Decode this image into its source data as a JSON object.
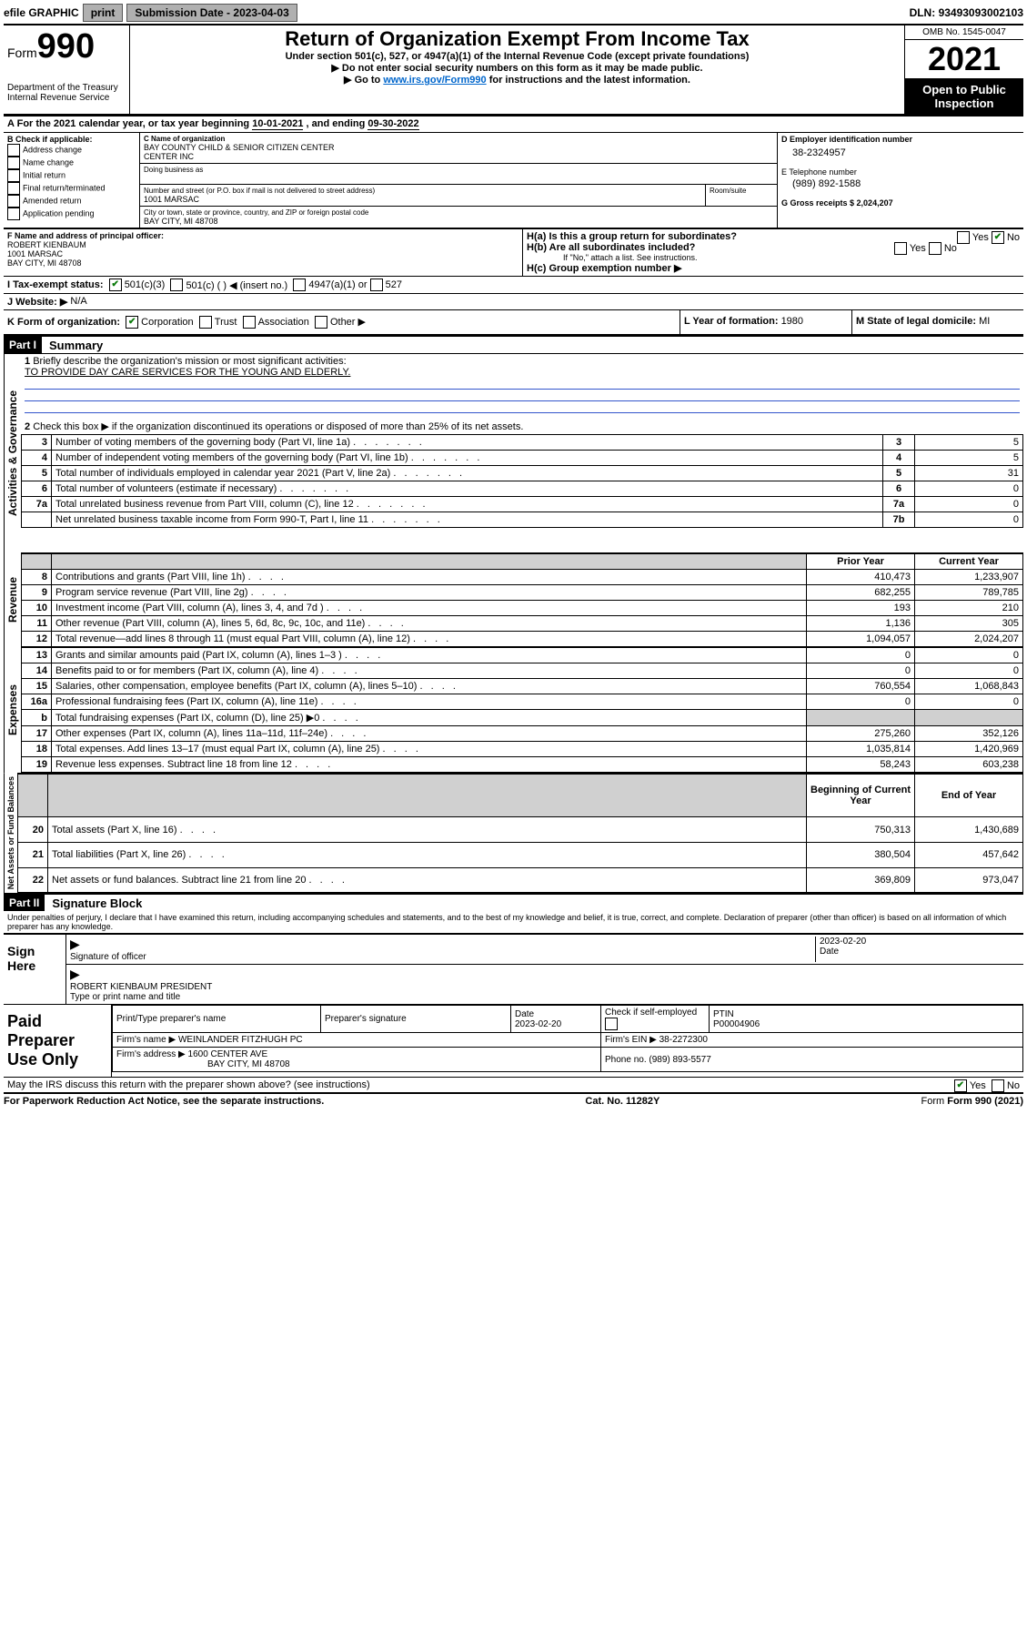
{
  "topbar": {
    "efile": "efile GRAPHIC",
    "print": "print",
    "submission_label": "Submission Date - ",
    "submission_date": "2023-04-03",
    "dln_label": "DLN: ",
    "dln": "93493093002103"
  },
  "header": {
    "form_prefix": "Form",
    "form_number": "990",
    "dept": "Department of the Treasury\nInternal Revenue Service",
    "title": "Return of Organization Exempt From Income Tax",
    "sub1": "Under section 501(c), 527, or 4947(a)(1) of the Internal Revenue Code (except private foundations)",
    "sub2": "▶ Do not enter social security numbers on this form as it may be made public.",
    "sub3_pre": "▶ Go to ",
    "sub3_link": "www.irs.gov/Form990",
    "sub3_post": " for instructions and the latest information.",
    "omb": "OMB No. 1545-0047",
    "year": "2021",
    "open": "Open to Public Inspection"
  },
  "period": {
    "text_a": "For the 2021 calendar year, or tax year beginning ",
    "begin": "10-01-2021",
    "mid": " , and ending ",
    "end": "09-30-2022"
  },
  "boxB": {
    "label": "B Check if applicable:",
    "items": [
      "Address change",
      "Name change",
      "Initial return",
      "Final return/terminated",
      "Amended return",
      "Application pending"
    ]
  },
  "boxC": {
    "name_label": "C Name of organization",
    "name": "BAY COUNTY CHILD & SENIOR CITIZEN CENTER\nCENTER INC",
    "dba_label": "Doing business as",
    "street_label": "Number and street (or P.O. box if mail is not delivered to street address)",
    "room_label": "Room/suite",
    "street": "1001 MARSAC",
    "city_label": "City or town, state or province, country, and ZIP or foreign postal code",
    "city": "BAY CITY, MI  48708"
  },
  "boxD": {
    "label": "D Employer identification number",
    "ein": "38-2324957"
  },
  "boxE": {
    "label": "E Telephone number",
    "phone": "(989) 892-1588"
  },
  "boxG": {
    "label": "G Gross receipts $ ",
    "amount": "2,024,207"
  },
  "boxF": {
    "label": "F Name and address of principal officer:",
    "name": "ROBERT KIENBAUM",
    "street": "1001 MARSAC",
    "city": "BAY CITY, MI  48708"
  },
  "boxH": {
    "a_label": "H(a)  Is this a group return for subordinates?",
    "a_yes": "Yes",
    "a_no": "No",
    "b_label": "H(b)  Are all subordinates included?",
    "note": "If \"No,\" attach a list. See instructions.",
    "c_label": "H(c)  Group exemption number ▶"
  },
  "boxI": {
    "label": "I   Tax-exempt status:",
    "opts": [
      "501(c)(3)",
      "501(c) (  ) ◀ (insert no.)",
      "4947(a)(1) or",
      "527"
    ]
  },
  "boxJ": {
    "label": "J   Website: ▶",
    "value": "N/A"
  },
  "boxK": {
    "label": "K Form of organization:",
    "opts": [
      "Corporation",
      "Trust",
      "Association",
      "Other ▶"
    ]
  },
  "boxL": {
    "label": "L Year of formation: ",
    "value": "1980"
  },
  "boxM": {
    "label": "M State of legal domicile: ",
    "value": "MI"
  },
  "part1": {
    "header": "Part I",
    "title": "Summary"
  },
  "summary": {
    "q1": "Briefly describe the organization's mission or most significant activities:",
    "q1_ans": "TO PROVIDE DAY CARE SERVICES FOR THE YOUNG AND ELDERLY.",
    "q2": "Check this box ▶       if the organization discontinued its operations or disposed of more than 25% of its net assets.",
    "lines_gov": [
      {
        "n": "3",
        "t": "Number of voting members of the governing body (Part VI, line 1a)",
        "box": "3",
        "v": "5"
      },
      {
        "n": "4",
        "t": "Number of independent voting members of the governing body (Part VI, line 1b)",
        "box": "4",
        "v": "5"
      },
      {
        "n": "5",
        "t": "Total number of individuals employed in calendar year 2021 (Part V, line 2a)",
        "box": "5",
        "v": "31"
      },
      {
        "n": "6",
        "t": "Total number of volunteers (estimate if necessary)",
        "box": "6",
        "v": "0"
      },
      {
        "n": "7a",
        "t": "Total unrelated business revenue from Part VIII, column (C), line 12",
        "box": "7a",
        "v": "0"
      },
      {
        "n": "",
        "t": "Net unrelated business taxable income from Form 990-T, Part I, line 11",
        "box": "7b",
        "v": "0"
      }
    ],
    "col_prior": "Prior Year",
    "col_current": "Current Year",
    "revenue": [
      {
        "n": "8",
        "t": "Contributions and grants (Part VIII, line 1h)",
        "p": "410,473",
        "c": "1,233,907"
      },
      {
        "n": "9",
        "t": "Program service revenue (Part VIII, line 2g)",
        "p": "682,255",
        "c": "789,785"
      },
      {
        "n": "10",
        "t": "Investment income (Part VIII, column (A), lines 3, 4, and 7d )",
        "p": "193",
        "c": "210"
      },
      {
        "n": "11",
        "t": "Other revenue (Part VIII, column (A), lines 5, 6d, 8c, 9c, 10c, and 11e)",
        "p": "1,136",
        "c": "305"
      },
      {
        "n": "12",
        "t": "Total revenue—add lines 8 through 11 (must equal Part VIII, column (A), line 12)",
        "p": "1,094,057",
        "c": "2,024,207"
      }
    ],
    "expenses": [
      {
        "n": "13",
        "t": "Grants and similar amounts paid (Part IX, column (A), lines 1–3 )",
        "p": "0",
        "c": "0"
      },
      {
        "n": "14",
        "t": "Benefits paid to or for members (Part IX, column (A), line 4)",
        "p": "0",
        "c": "0"
      },
      {
        "n": "15",
        "t": "Salaries, other compensation, employee benefits (Part IX, column (A), lines 5–10)",
        "p": "760,554",
        "c": "1,068,843"
      },
      {
        "n": "16a",
        "t": "Professional fundraising fees (Part IX, column (A), line 11e)",
        "p": "0",
        "c": "0"
      },
      {
        "n": "b",
        "t": "Total fundraising expenses (Part IX, column (D), line 25) ▶0",
        "p": "",
        "c": "",
        "grey": true
      },
      {
        "n": "17",
        "t": "Other expenses (Part IX, column (A), lines 11a–11d, 11f–24e)",
        "p": "275,260",
        "c": "352,126"
      },
      {
        "n": "18",
        "t": "Total expenses. Add lines 13–17 (must equal Part IX, column (A), line 25)",
        "p": "1,035,814",
        "c": "1,420,969"
      },
      {
        "n": "19",
        "t": "Revenue less expenses. Subtract line 18 from line 12",
        "p": "58,243",
        "c": "603,238"
      }
    ],
    "col_begin": "Beginning of Current Year",
    "col_end": "End of Year",
    "net": [
      {
        "n": "20",
        "t": "Total assets (Part X, line 16)",
        "p": "750,313",
        "c": "1,430,689"
      },
      {
        "n": "21",
        "t": "Total liabilities (Part X, line 26)",
        "p": "380,504",
        "c": "457,642"
      },
      {
        "n": "22",
        "t": "Net assets or fund balances. Subtract line 21 from line 20",
        "p": "369,809",
        "c": "973,047"
      }
    ],
    "vlabels": {
      "gov": "Activities & Governance",
      "rev": "Revenue",
      "exp": "Expenses",
      "net": "Net Assets or Fund Balances"
    }
  },
  "part2": {
    "header": "Part II",
    "title": "Signature Block",
    "decl": "Under penalties of perjury, I declare that I have examined this return, including accompanying schedules and statements, and to the best of my knowledge and belief, it is true, correct, and complete. Declaration of preparer (other than officer) is based on all information of which preparer has any knowledge."
  },
  "sign": {
    "here": "Sign Here",
    "sig_label": "Signature of officer",
    "date_label": "Date",
    "date": "2023-02-20",
    "name": "ROBERT KIENBAUM PRESIDENT",
    "name_label": "Type or print name and title"
  },
  "prep": {
    "label": "Paid Preparer Use Only",
    "h1": "Print/Type preparer's name",
    "h2": "Preparer's signature",
    "h3": "Date",
    "date": "2023-02-20",
    "h4": "Check       if self-employed",
    "h5": "PTIN",
    "ptin": "P00004906",
    "firm_label": "Firm's name    ▶",
    "firm": "WEINLANDER FITZHUGH PC",
    "ein_label": "Firm's EIN ▶ ",
    "ein": "38-2272300",
    "addr_label": "Firm's address ▶",
    "addr1": "1600 CENTER AVE",
    "addr2": "BAY CITY, MI  48708",
    "phone_label": "Phone no. ",
    "phone": "(989) 893-5577"
  },
  "discuss": {
    "q": "May the IRS discuss this return with the preparer shown above? (see instructions)",
    "yes": "Yes",
    "no": "No"
  },
  "footer": {
    "left": "For Paperwork Reduction Act Notice, see the separate instructions.",
    "mid": "Cat. No. 11282Y",
    "right": "Form 990 (2021)"
  }
}
